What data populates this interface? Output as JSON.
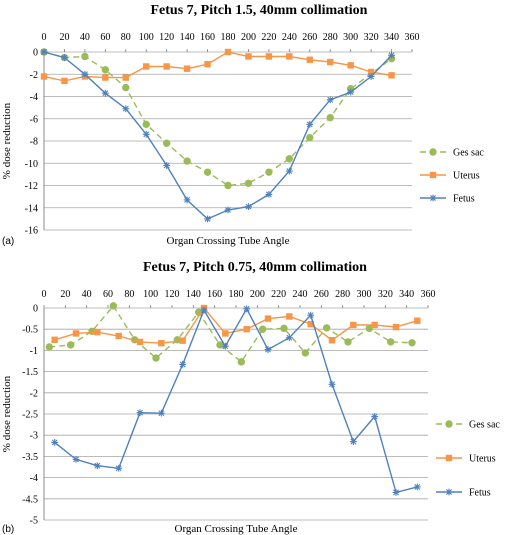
{
  "chart_data": [
    {
      "type": "line",
      "panel": "(a)",
      "title": "Fetus 7, Pitch 1.5, 40mm collimation",
      "xlabel": "Organ Crossing Tube Angle",
      "ylabel": "% dose reduction",
      "xlim": [
        0,
        360
      ],
      "ylim": [
        -16,
        0
      ],
      "xticks": [
        0,
        20,
        40,
        60,
        80,
        100,
        120,
        140,
        160,
        180,
        200,
        220,
        240,
        260,
        280,
        300,
        320,
        340,
        360
      ],
      "yticks": [
        0,
        -2,
        -4,
        -6,
        -8,
        -10,
        -12,
        -14,
        -16
      ],
      "grid": "horizontal",
      "legend_position": "right",
      "series": [
        {
          "name": "Ges sac",
          "style": "dashed",
          "marker": "circle",
          "color": "#9bbb59",
          "x": [
            0,
            20,
            40,
            60,
            80,
            100,
            120,
            140,
            160,
            180,
            200,
            220,
            240,
            260,
            280,
            300,
            340
          ],
          "y": [
            0,
            -0.5,
            -0.4,
            -1.6,
            -3.2,
            -6.5,
            -8.2,
            -9.8,
            -10.8,
            -12.0,
            -11.8,
            -10.8,
            -9.6,
            -7.7,
            -5.9,
            -3.3,
            -0.6
          ]
        },
        {
          "name": "Uterus",
          "style": "solid",
          "marker": "square",
          "color": "#f79646",
          "x": [
            0,
            20,
            40,
            60,
            80,
            100,
            120,
            140,
            160,
            180,
            200,
            220,
            240,
            260,
            280,
            300,
            320,
            340
          ],
          "y": [
            -2.2,
            -2.6,
            -2.2,
            -2.3,
            -2.3,
            -1.3,
            -1.3,
            -1.5,
            -1.1,
            0,
            -0.4,
            -0.4,
            -0.4,
            -0.7,
            -0.9,
            -1.2,
            -1.8,
            -2.1
          ]
        },
        {
          "name": "Fetus",
          "style": "solid",
          "marker": "star",
          "color": "#4f81bd",
          "x": [
            0,
            20,
            40,
            60,
            80,
            100,
            120,
            140,
            160,
            180,
            200,
            220,
            240,
            260,
            280,
            300,
            320,
            340
          ],
          "y": [
            0,
            -0.5,
            -2.0,
            -3.7,
            -5.1,
            -7.4,
            -10.2,
            -13.3,
            -15.0,
            -14.2,
            -13.9,
            -12.8,
            -10.7,
            -6.5,
            -4.3,
            -3.6,
            -2.2,
            -0.3
          ]
        }
      ]
    },
    {
      "type": "line",
      "panel": "(b)",
      "title": "Fetus 7, Pitch 0.75, 40mm collimation",
      "xlabel": "Organ Crossing Tube Angle",
      "ylabel": "% dose reduction",
      "xlim": [
        0,
        360
      ],
      "ylim": [
        -5,
        0
      ],
      "xticks": [
        0,
        20,
        40,
        60,
        80,
        100,
        120,
        140,
        160,
        180,
        200,
        220,
        240,
        260,
        280,
        300,
        320,
        340,
        360
      ],
      "yticks": [
        "0",
        "-0.5",
        "-1",
        "-1.5",
        "-2",
        "-2.5",
        "-3",
        "-3.5",
        "-4",
        "-4.5",
        "-5"
      ],
      "grid": "horizontal",
      "legend_position": "right",
      "series": [
        {
          "name": "Ges sac",
          "style": "dashed",
          "marker": "circle",
          "color": "#9bbb59",
          "x": [
            5,
            25,
            45,
            65,
            85,
            105,
            125,
            145,
            165,
            185,
            205,
            225,
            245,
            265,
            285,
            305,
            325,
            345
          ],
          "y": [
            -0.92,
            -0.87,
            -0.55,
            0.05,
            -0.75,
            -1.18,
            -0.75,
            -0.1,
            -0.87,
            -1.27,
            -0.5,
            -0.48,
            -1.06,
            -0.47,
            -0.8,
            -0.48,
            -0.8,
            -0.82
          ]
        },
        {
          "name": "Uterus",
          "style": "solid",
          "marker": "square",
          "color": "#f79646",
          "x": [
            10,
            30,
            50,
            70,
            90,
            110,
            130,
            150,
            170,
            190,
            210,
            230,
            250,
            270,
            290,
            310,
            330,
            350
          ],
          "y": [
            -0.75,
            -0.6,
            -0.57,
            -0.66,
            -0.8,
            -0.83,
            -0.77,
            0.0,
            -0.6,
            -0.5,
            -0.25,
            -0.2,
            -0.38,
            -0.76,
            -0.4,
            -0.4,
            -0.45,
            -0.3
          ]
        },
        {
          "name": "Fetus",
          "style": "solid",
          "marker": "star",
          "color": "#4f81bd",
          "x": [
            10,
            30,
            50,
            70,
            90,
            110,
            130,
            150,
            170,
            190,
            210,
            230,
            250,
            270,
            290,
            310,
            330,
            350
          ],
          "y": [
            -3.17,
            -3.57,
            -3.72,
            -3.78,
            -2.47,
            -2.48,
            -1.33,
            -0.05,
            -0.9,
            -0.02,
            -0.98,
            -0.7,
            -0.17,
            -1.8,
            -3.15,
            -2.56,
            -4.35,
            -4.22
          ]
        }
      ]
    }
  ]
}
